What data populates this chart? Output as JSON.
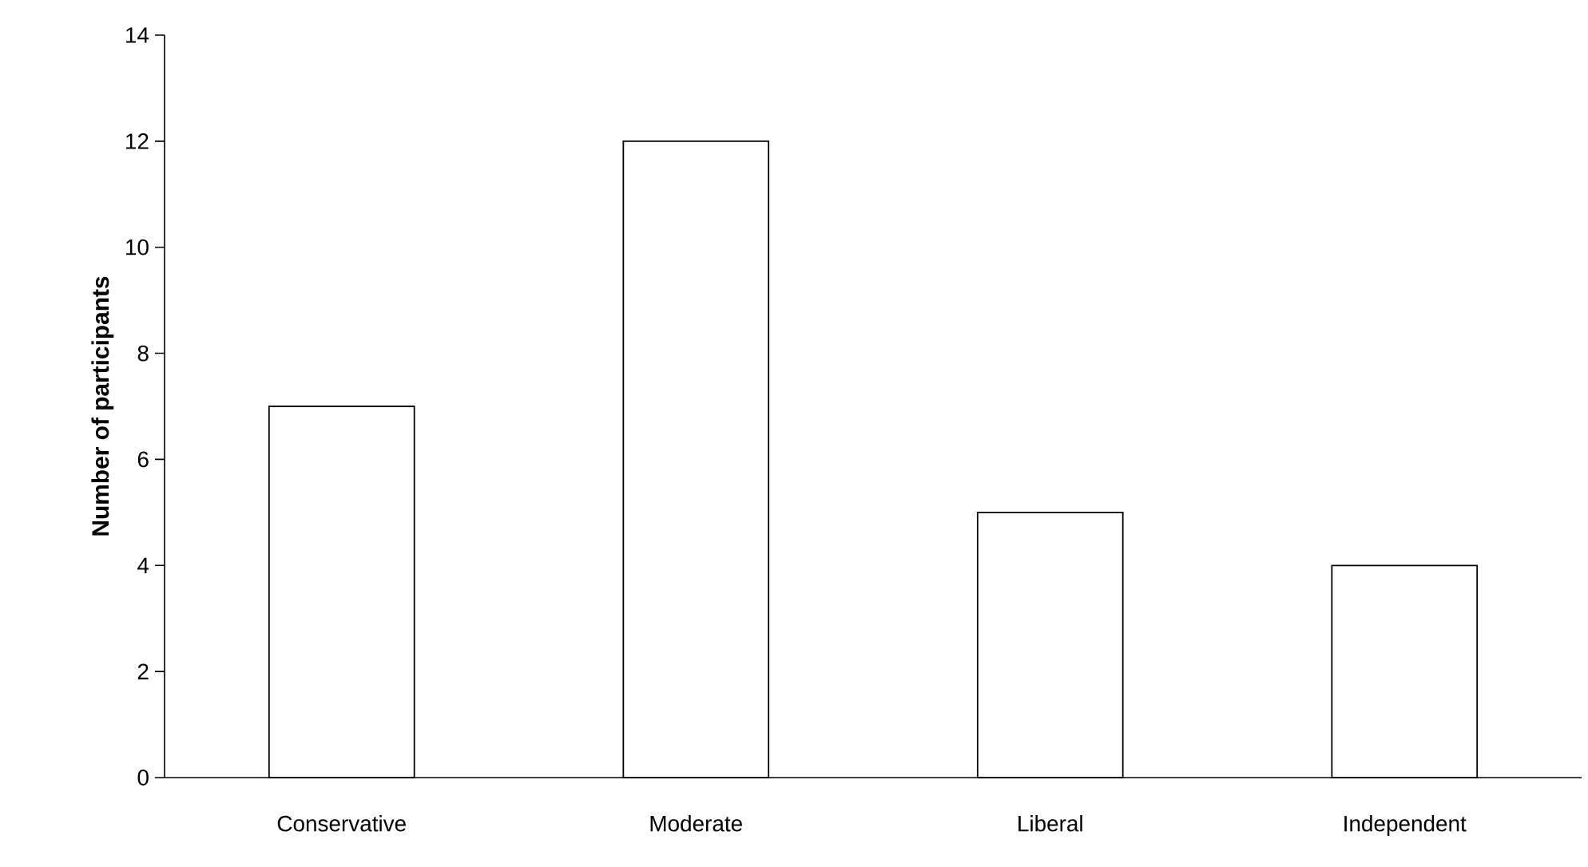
{
  "chart_data": {
    "type": "bar",
    "ylabel": "Number of participants",
    "categories": [
      "Conservative",
      "Moderate",
      "Liberal",
      "Independent"
    ],
    "values": [
      7,
      12,
      5,
      4
    ],
    "color": "#ffffff",
    "ylim": [
      0,
      14
    ],
    "yticks": [
      0,
      2,
      4,
      6,
      8,
      10,
      12,
      14
    ]
  }
}
